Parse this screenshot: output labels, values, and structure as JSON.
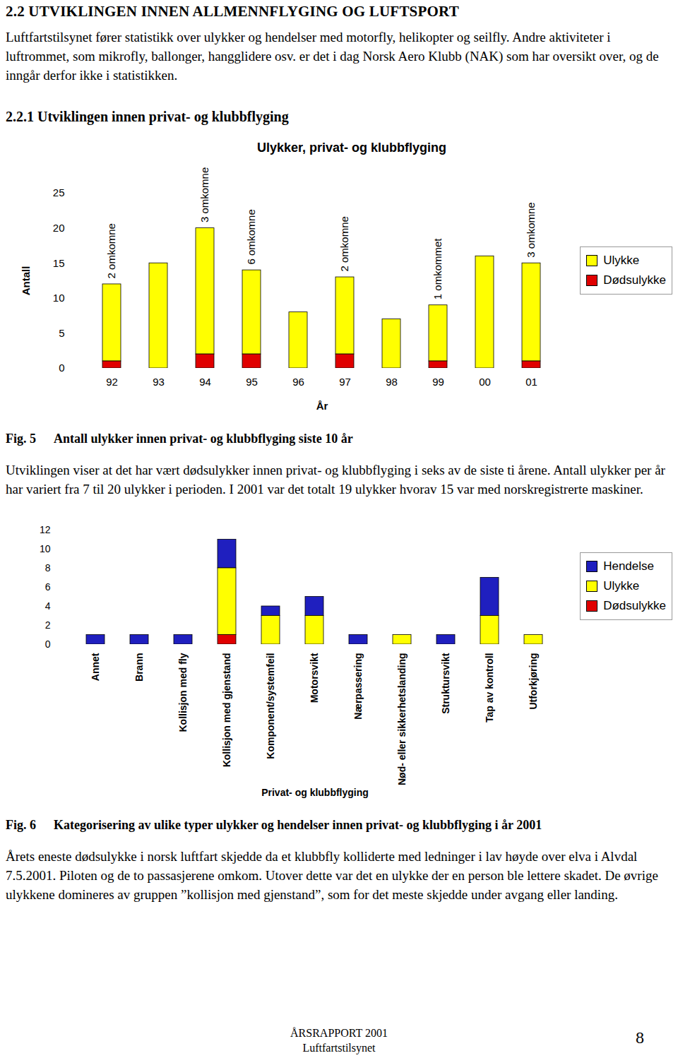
{
  "heading": "2.2 UTVIKLINGEN INNEN ALLMENNFLYGING OG LUFTSPORT",
  "intro": "Luftfartstilsynet fører statistikk over ulykker og hendelser med motorfly, helikopter og seilfly. Andre aktiviteter i luftrommet, som mikrofly, ballonger, hangglidere osv. er det i dag Norsk Aero Klubb (NAK) som har oversikt over, og de inngår derfor ikke i statistikken.",
  "subheading": "2.2.1 Utviklingen innen privat- og klubbflyging",
  "chart_data": [
    {
      "type": "bar",
      "stacked": true,
      "title": "Ulykker, privat- og klubbflyging",
      "x_label": "År",
      "y_label": "Antall",
      "categories": [
        "92",
        "93",
        "94",
        "95",
        "96",
        "97",
        "98",
        "99",
        "00",
        "01"
      ],
      "series": [
        {
          "name": "Ulykke",
          "color": "#ffff00",
          "values": [
            11,
            15,
            18,
            12,
            8,
            11,
            7,
            8,
            16,
            14
          ]
        },
        {
          "name": "Dødsulykke",
          "color": "#e00000",
          "values": [
            1,
            0,
            2,
            2,
            0,
            2,
            0,
            1,
            0,
            1
          ]
        }
      ],
      "ylim": [
        0,
        25
      ],
      "yticks": [
        0,
        5,
        10,
        15,
        20,
        25
      ],
      "grid": false,
      "legend": "right",
      "annotations": [
        {
          "category": "92",
          "text": "2 omkomne"
        },
        {
          "category": "94",
          "text": "3 omkomne"
        },
        {
          "category": "95",
          "text": "6 omkomne"
        },
        {
          "category": "97",
          "text": "2 omkomne"
        },
        {
          "category": "99",
          "text": "1 omkommet"
        },
        {
          "category": "01",
          "text": "3 omkomne"
        }
      ]
    },
    {
      "type": "bar",
      "stacked": true,
      "x_label": "Privat- og klubbflyging",
      "categories": [
        "Annet",
        "Brann",
        "Kollisjon med fly",
        "Kollisjon med gjenstand",
        "Komponent/systemfeil",
        "Motorsvikt",
        "Nærpassering",
        "Nød- eller sikkerhetslanding",
        "Struktursvikt",
        "Tap av kontroll",
        "Utforkjøring"
      ],
      "series": [
        {
          "name": "Hendelse",
          "color": "#1f1fbf",
          "values": [
            1,
            1,
            1,
            3,
            1,
            2,
            1,
            0,
            1,
            4,
            0
          ]
        },
        {
          "name": "Ulykke",
          "color": "#ffff00",
          "values": [
            0,
            0,
            0,
            7,
            3,
            3,
            0,
            1,
            0,
            3,
            1
          ]
        },
        {
          "name": "Dødsulykke",
          "color": "#e00000",
          "values": [
            0,
            0,
            0,
            1,
            0,
            0,
            0,
            0,
            0,
            0,
            0
          ]
        }
      ],
      "ylim": [
        0,
        12
      ],
      "yticks": [
        0,
        2,
        4,
        6,
        8,
        10,
        12
      ],
      "grid": false,
      "legend": "right"
    }
  ],
  "captions": [
    {
      "label": "Fig. 5",
      "text": "Antall ulykker innen privat- og klubbflyging siste 10 år"
    },
    {
      "label": "Fig. 6",
      "text": "Kategorisering av ulike typer ulykker og hendelser innen privat- og klubbflyging i år 2001"
    }
  ],
  "text_after_fig5": "Utviklingen viser at det har vært dødsulykker innen privat- og klubbflyging i seks av de siste ti årene. Antall ulykker per år har variert fra 7 til 20 ulykker i perioden. I 2001 var det totalt 19 ulykker hvorav 15 var med norskregistrerte maskiner.",
  "text_after_fig6": "Årets eneste dødsulykke i norsk luftfart skjedde da et klubbfly kolliderte med ledninger i lav høyde over elva i Alvdal 7.5.2001. Piloten og de to passasjerene omkom. Utover dette var det en ulykke der en person ble lettere skadet. De øvrige ulykkene domineres av gruppen ”kollisjon med gjenstand”, som for det meste skjedde under avgang eller landing.",
  "footer": {
    "lines": [
      "ÅRSRAPPORT 2001",
      "Luftfartstilsynet"
    ],
    "page_number": 8
  }
}
